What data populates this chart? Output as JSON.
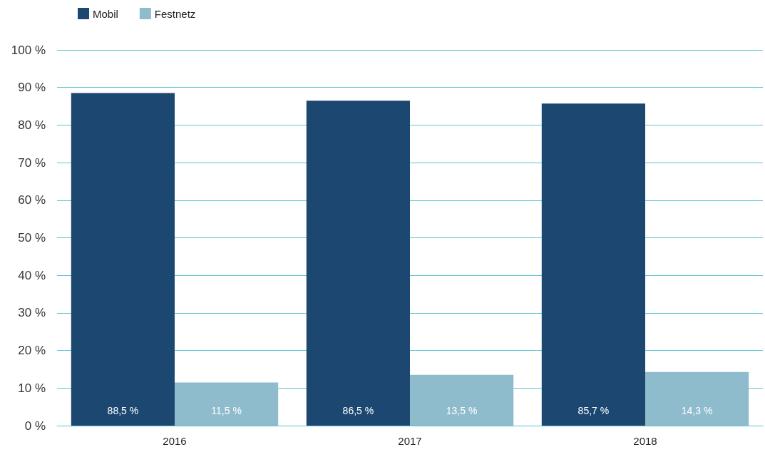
{
  "chart_data": {
    "type": "bar",
    "categories": [
      "2016",
      "2017",
      "2018"
    ],
    "series": [
      {
        "name": "Mobil",
        "color": "#1b4770",
        "values": [
          88.5,
          86.5,
          85.7
        ],
        "value_labels": [
          "88,5 %",
          "86,5 %",
          "85,7 %"
        ]
      },
      {
        "name": "Festnetz",
        "color": "#8fbccc",
        "values": [
          11.5,
          13.5,
          14.3
        ],
        "value_labels": [
          "11,5 %",
          "13,5 %",
          "14,3 %"
        ]
      }
    ],
    "ylim": [
      0,
      100
    ],
    "yticks": [
      {
        "value": 0,
        "label": "0 %"
      },
      {
        "value": 10,
        "label": "10 %"
      },
      {
        "value": 20,
        "label": "20 %"
      },
      {
        "value": 30,
        "label": "30 %"
      },
      {
        "value": 40,
        "label": "40 %"
      },
      {
        "value": 50,
        "label": "50 %"
      },
      {
        "value": 60,
        "label": "60 %"
      },
      {
        "value": 70,
        "label": "70 %"
      },
      {
        "value": 80,
        "label": "80 %"
      },
      {
        "value": 90,
        "label": "90 %"
      },
      {
        "value": 100,
        "label": "100 %"
      }
    ],
    "grid": "y",
    "legend": "top left"
  }
}
